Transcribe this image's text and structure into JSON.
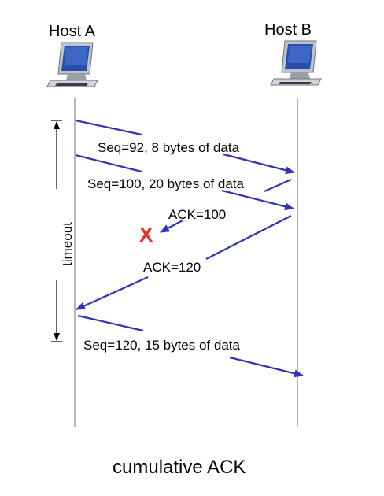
{
  "hosts": {
    "a_label": "Host A",
    "b_label": "Host B"
  },
  "messages": {
    "seq92": "Seq=92, 8 bytes of data",
    "seq100": "Seq=100, 20 bytes of data",
    "ack100": "ACK=100",
    "ack120": "ACK=120",
    "seq120": "Seq=120,  15 bytes of data"
  },
  "loss_marker": "X",
  "timeout_label": "timeout",
  "caption": "cumulative ACK",
  "colors": {
    "arrow": "#3333b3",
    "loss": "#e03127",
    "timeline": "#888888",
    "text": "#000000"
  },
  "icons": {
    "host_a": "desktop-computer-icon",
    "host_b": "desktop-computer-icon"
  }
}
